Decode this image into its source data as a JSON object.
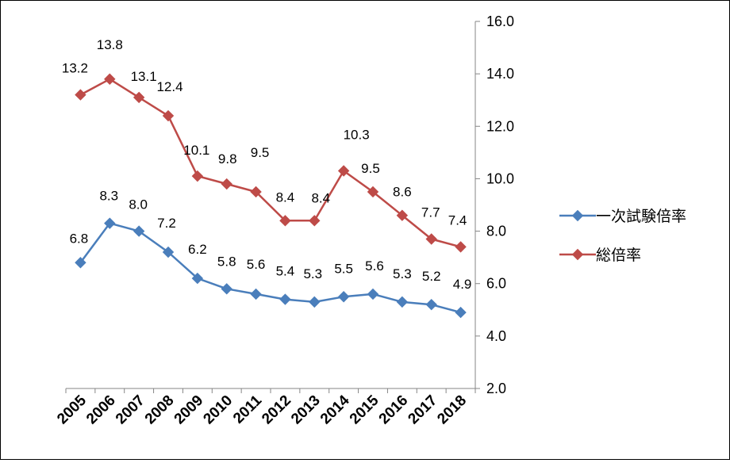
{
  "chart_data": {
    "type": "line",
    "title": "",
    "xlabel": "",
    "ylabel": "",
    "ylim": [
      2.0,
      16.0
    ],
    "yticks": [
      "2.0",
      "4.0",
      "6.0",
      "8.0",
      "10.0",
      "12.0",
      "14.0",
      "16.0"
    ],
    "y_axis_side": "right",
    "grid": false,
    "legend_position": "right",
    "categories": [
      "2005",
      "2006",
      "2007",
      "2008",
      "2009",
      "2010",
      "2011",
      "2012",
      "2013",
      "2014",
      "2015",
      "2016",
      "2017",
      "2018"
    ],
    "series": [
      {
        "name": "一次試験倍率",
        "color": "#4a7ebb",
        "values": [
          6.8,
          8.3,
          8.0,
          7.2,
          6.2,
          5.8,
          5.6,
          5.4,
          5.3,
          5.5,
          5.6,
          5.3,
          5.2,
          4.9
        ],
        "labels": [
          "6.8",
          "8.3",
          "8.0",
          "7.2",
          "6.2",
          "5.8",
          "5.6",
          "5.4",
          "5.3",
          "5.5",
          "5.6",
          "5.3",
          "5.2",
          "4.9"
        ]
      },
      {
        "name": "総倍率",
        "color": "#be4b48",
        "values": [
          13.2,
          13.8,
          13.1,
          12.4,
          10.1,
          9.8,
          9.5,
          8.4,
          8.4,
          10.3,
          9.5,
          8.6,
          7.7,
          7.4
        ],
        "labels": [
          "13.2",
          "13.8",
          "13.1",
          "12.4",
          "10.1",
          "9.8",
          "9.5",
          "8.4",
          "8.4",
          "10.3",
          "9.5",
          "8.6",
          "7.7",
          "7.4"
        ]
      }
    ]
  }
}
